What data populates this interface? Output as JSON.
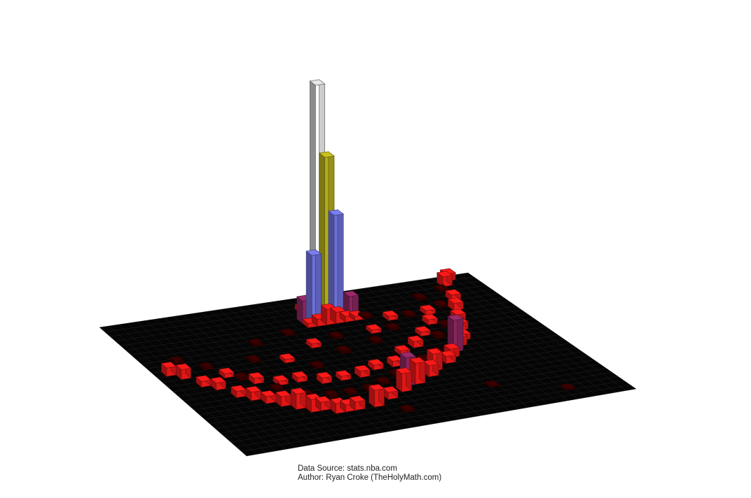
{
  "chart_data": {
    "type": "3d-bar",
    "title": "",
    "xlabel": "",
    "ylabel": "",
    "zlabel": "",
    "grid": false,
    "colors": {
      "floor": "#050505",
      "floor_grid": "#2a2a2a",
      "low": "#3a0000",
      "mid": "#ff1a1a",
      "high_purple": "#9a2a6a",
      "blue": "#7b7ef2",
      "yellow": "#c9c21f",
      "white": "#ffffff"
    },
    "note_color_scale": "bar color encodes shooting efficiency: dark red (low) to bright red to purple/blue/white (high)",
    "bins": [
      {
        "col": 21,
        "row": 3,
        "h": 330,
        "c": "white"
      },
      {
        "col": 22,
        "row": 3,
        "h": 225,
        "c": "yellow"
      },
      {
        "col": 23,
        "row": 3,
        "h": 140,
        "c": "blue"
      },
      {
        "col": 20,
        "row": 4,
        "h": 95,
        "c": "blue"
      },
      {
        "col": 19,
        "row": 4,
        "h": 32,
        "c": "purple"
      },
      {
        "col": 24,
        "row": 4,
        "h": 28,
        "c": "purple"
      },
      {
        "col": 21,
        "row": 5,
        "h": 22,
        "c": "red"
      },
      {
        "col": 22,
        "row": 5,
        "h": 16,
        "c": "red"
      },
      {
        "col": 20,
        "row": 5,
        "h": 10,
        "c": "red"
      },
      {
        "col": 23,
        "row": 5,
        "h": 8,
        "c": "red"
      },
      {
        "col": 19,
        "row": 5,
        "h": 6,
        "c": "red"
      },
      {
        "col": 24,
        "row": 5,
        "h": 6,
        "c": "red"
      },
      {
        "col": 20,
        "row": 2,
        "h": 6,
        "c": "red"
      },
      {
        "col": 23,
        "row": 2,
        "h": 5,
        "c": "red"
      },
      {
        "col": 1,
        "row": 10,
        "h": 12,
        "c": "red"
      },
      {
        "col": 2,
        "row": 11,
        "h": 14,
        "c": "red"
      },
      {
        "col": 3,
        "row": 13,
        "h": 8,
        "c": "red"
      },
      {
        "col": 4,
        "row": 14,
        "h": 10,
        "c": "red"
      },
      {
        "col": 5,
        "row": 16,
        "h": 9,
        "c": "red"
      },
      {
        "col": 6,
        "row": 17,
        "h": 12,
        "c": "red"
      },
      {
        "col": 7,
        "row": 18,
        "h": 10,
        "c": "red"
      },
      {
        "col": 8,
        "row": 19,
        "h": 14,
        "c": "red"
      },
      {
        "col": 9,
        "row": 20,
        "h": 22,
        "c": "red"
      },
      {
        "col": 10,
        "row": 21,
        "h": 18,
        "c": "red"
      },
      {
        "col": 11,
        "row": 21,
        "h": 12,
        "c": "red"
      },
      {
        "col": 12,
        "row": 22,
        "h": 14,
        "c": "red"
      },
      {
        "col": 13,
        "row": 22,
        "h": 10,
        "c": "red"
      },
      {
        "col": 14,
        "row": 22,
        "h": 12,
        "c": "red"
      },
      {
        "col": 16,
        "row": 22,
        "h": 24,
        "c": "red"
      },
      {
        "col": 18,
        "row": 21,
        "h": 10,
        "c": "red"
      },
      {
        "col": 20,
        "row": 20,
        "h": 26,
        "c": "red"
      },
      {
        "col": 21,
        "row": 19,
        "h": 40,
        "c": "purple"
      },
      {
        "col": 22,
        "row": 19,
        "h": 30,
        "c": "red"
      },
      {
        "col": 24,
        "row": 18,
        "h": 16,
        "c": "red"
      },
      {
        "col": 25,
        "row": 17,
        "h": 24,
        "c": "red"
      },
      {
        "col": 27,
        "row": 16,
        "h": 10,
        "c": "red"
      },
      {
        "col": 28,
        "row": 15,
        "h": 12,
        "c": "red"
      },
      {
        "col": 29,
        "row": 14,
        "h": 45,
        "c": "purple"
      },
      {
        "col": 30,
        "row": 13,
        "h": 12,
        "c": "red"
      },
      {
        "col": 31,
        "row": 12,
        "h": 8,
        "c": "red"
      },
      {
        "col": 32,
        "row": 10,
        "h": 10,
        "c": "red"
      },
      {
        "col": 33,
        "row": 8,
        "h": 8,
        "c": "red"
      },
      {
        "col": 34,
        "row": 6,
        "h": 10,
        "c": "red"
      },
      {
        "col": 35,
        "row": 4,
        "h": 8,
        "c": "red"
      },
      {
        "col": 36,
        "row": 1,
        "h": 14,
        "c": "red"
      },
      {
        "col": 37,
        "row": 0,
        "h": 10,
        "c": "red"
      },
      {
        "col": 6,
        "row": 12,
        "h": 6,
        "c": "red"
      },
      {
        "col": 8,
        "row": 14,
        "h": 8,
        "c": "red"
      },
      {
        "col": 10,
        "row": 15,
        "h": 6,
        "c": "red"
      },
      {
        "col": 12,
        "row": 15,
        "h": 7,
        "c": "red"
      },
      {
        "col": 14,
        "row": 16,
        "h": 8,
        "c": "red"
      },
      {
        "col": 16,
        "row": 16,
        "h": 6,
        "c": "red"
      },
      {
        "col": 18,
        "row": 16,
        "h": 9,
        "c": "red"
      },
      {
        "col": 20,
        "row": 15,
        "h": 7,
        "c": "red"
      },
      {
        "col": 22,
        "row": 15,
        "h": 8,
        "c": "red"
      },
      {
        "col": 24,
        "row": 13,
        "h": 6,
        "c": "red"
      },
      {
        "col": 26,
        "row": 12,
        "h": 9,
        "c": "red"
      },
      {
        "col": 28,
        "row": 10,
        "h": 6,
        "c": "red"
      },
      {
        "col": 30,
        "row": 8,
        "h": 7,
        "c": "red"
      },
      {
        "col": 31,
        "row": 6,
        "h": 6,
        "c": "red"
      },
      {
        "col": 17,
        "row": 9,
        "h": 6,
        "c": "red"
      },
      {
        "col": 24,
        "row": 8,
        "h": 5,
        "c": "red"
      },
      {
        "col": 27,
        "row": 6,
        "h": 6,
        "c": "red"
      },
      {
        "col": 13,
        "row": 11,
        "h": 5,
        "c": "red"
      },
      {
        "col": 3,
        "row": 8,
        "h": 3,
        "c": "dark"
      },
      {
        "col": 5,
        "row": 10,
        "h": 3,
        "c": "dark"
      },
      {
        "col": 7,
        "row": 13,
        "h": 4,
        "c": "dark"
      },
      {
        "col": 9,
        "row": 16,
        "h": 3,
        "c": "dark"
      },
      {
        "col": 11,
        "row": 18,
        "h": 3,
        "c": "dark"
      },
      {
        "col": 13,
        "row": 19,
        "h": 4,
        "c": "dark"
      },
      {
        "col": 15,
        "row": 19,
        "h": 3,
        "c": "dark"
      },
      {
        "col": 17,
        "row": 19,
        "h": 4,
        "c": "dark"
      },
      {
        "col": 19,
        "row": 18,
        "h": 3,
        "c": "dark"
      },
      {
        "col": 21,
        "row": 17,
        "h": 3,
        "c": "dark"
      },
      {
        "col": 23,
        "row": 16,
        "h": 4,
        "c": "dark"
      },
      {
        "col": 25,
        "row": 15,
        "h": 3,
        "c": "dark"
      },
      {
        "col": 27,
        "row": 14,
        "h": 3,
        "c": "dark"
      },
      {
        "col": 29,
        "row": 11,
        "h": 4,
        "c": "dark"
      },
      {
        "col": 31,
        "row": 9,
        "h": 3,
        "c": "dark"
      },
      {
        "col": 33,
        "row": 5,
        "h": 3,
        "c": "dark"
      },
      {
        "col": 35,
        "row": 2,
        "h": 3,
        "c": "dark"
      },
      {
        "col": 10,
        "row": 10,
        "h": 3,
        "c": "dark"
      },
      {
        "col": 15,
        "row": 13,
        "h": 3,
        "c": "dark"
      },
      {
        "col": 19,
        "row": 11,
        "h": 4,
        "c": "dark"
      },
      {
        "col": 23,
        "row": 10,
        "h": 3,
        "c": "dark"
      },
      {
        "col": 26,
        "row": 8,
        "h": 3,
        "c": "dark"
      },
      {
        "col": 29,
        "row": 6,
        "h": 3,
        "c": "dark"
      },
      {
        "col": 32,
        "row": 3,
        "h": 3,
        "c": "dark"
      },
      {
        "col": 12,
        "row": 7,
        "h": 3,
        "c": "dark"
      },
      {
        "col": 16,
        "row": 6,
        "h": 3,
        "c": "dark"
      },
      {
        "col": 20,
        "row": 8,
        "h": 3,
        "c": "dark"
      },
      {
        "col": 25,
        "row": 5,
        "h": 3,
        "c": "dark"
      },
      {
        "col": 18,
        "row": 24,
        "h": 3,
        "c": "dark"
      },
      {
        "col": 28,
        "row": 22,
        "h": 2,
        "c": "dark"
      },
      {
        "col": 34,
        "row": 25,
        "h": 2,
        "c": "dark"
      }
    ]
  },
  "credits": {
    "line1": "Data Source: stats.nba.com",
    "line2": "Author: Ryan Croke (TheHolyMath.com)"
  }
}
